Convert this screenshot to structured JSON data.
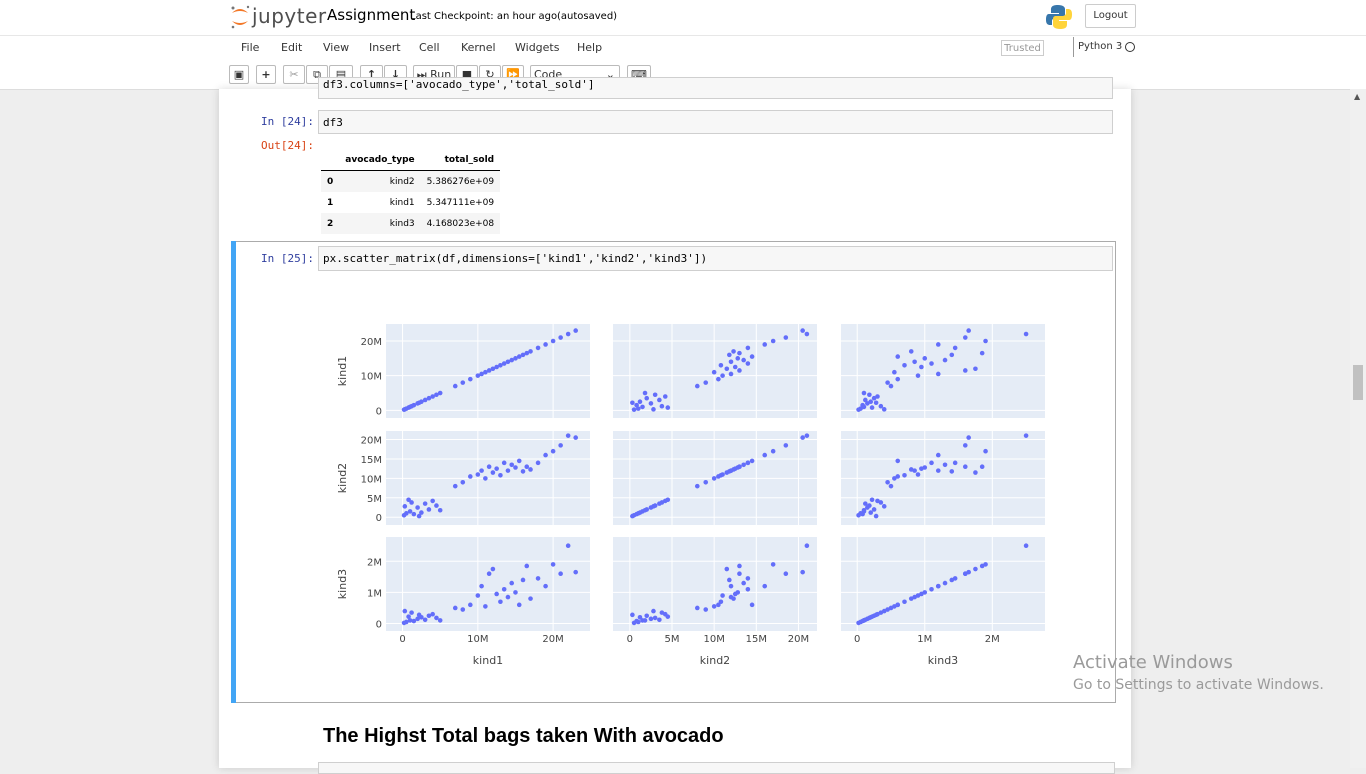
{
  "header": {
    "logo": "jupyter",
    "notebook_name": "Assignment",
    "checkpoint": "Last Checkpoint: an hour ago",
    "autosave": "(autosaved)",
    "logout": "Logout"
  },
  "menu": {
    "items": [
      "File",
      "Edit",
      "View",
      "Insert",
      "Cell",
      "Kernel",
      "Widgets",
      "Help"
    ],
    "trusted": "Trusted",
    "kernel": "Python 3"
  },
  "toolbar": {
    "run": "Run",
    "cell_type": "Code"
  },
  "cells": [
    {
      "code": "df3.columns=['avocado_type','total_sold']"
    },
    {
      "prompt": "In [24]:",
      "code": "df3",
      "out_prompt": "Out[24]:",
      "table": {
        "columns": [
          "avocado_type",
          "total_sold"
        ],
        "rows": [
          [
            "0",
            "kind2",
            "5.386276e+09"
          ],
          [
            "1",
            "kind1",
            "5.347111e+09"
          ],
          [
            "2",
            "kind3",
            "4.168023e+08"
          ]
        ]
      }
    },
    {
      "prompt": "In [25]:",
      "code": "px.scatter_matrix(df,dimensions=['kind1','kind2','kind3'])"
    },
    {
      "heading": "The Highst Total bags taken With avocado"
    }
  ],
  "watermark": {
    "title": "Activate Windows",
    "text": "Go to Settings to activate Windows."
  },
  "chart_data": {
    "type": "scatter_matrix",
    "color": "#636efa",
    "grid": true,
    "dimensions": [
      {
        "name": "kind1",
        "lim": [
          -2200000,
          24900000
        ],
        "ticks": [
          0,
          {
            "value": 10000000,
            "label": "10M"
          },
          {
            "value": 20000000,
            "label": "20M"
          }
        ],
        "values": [
          200000,
          500000,
          1000000,
          1500000,
          2000000,
          2500000,
          3000000,
          3500000,
          4000000,
          4500000,
          800000,
          1200000,
          300000,
          5000000,
          2200000,
          7000000,
          8000000,
          9000000,
          10000000,
          10500000,
          11000000,
          11500000,
          12000000,
          12500000,
          13000000,
          13500000,
          14000000,
          14500000,
          15000000,
          15500000,
          16000000,
          16500000,
          17000000,
          18000000,
          19000000,
          20000000,
          21000000,
          22000000,
          23000000
        ]
      },
      {
        "name": "kind2",
        "lim": [
          -2000000,
          22200000
        ],
        "ticks": [
          0,
          {
            "value": 5000000,
            "label": "5M"
          },
          {
            "value": 10000000,
            "label": "10M"
          },
          {
            "value": 15000000,
            "label": "15M"
          },
          {
            "value": 20000000,
            "label": "20M"
          }
        ],
        "values": [
          500000,
          1000000,
          1500000,
          800000,
          2500000,
          1200000,
          3500000,
          2000000,
          4200000,
          3000000,
          4500000,
          3800000,
          2800000,
          1800000,
          300000,
          8000000,
          9000000,
          10500000,
          11000000,
          12000000,
          10000000,
          13000000,
          11500000,
          12500000,
          10800000,
          14000000,
          12000000,
          13500000,
          12800000,
          14500000,
          11800000,
          13000000,
          12300000,
          14000000,
          16000000,
          17000000,
          18500000,
          21000000,
          20500000
        ]
      },
      {
        "name": "kind3",
        "lim": [
          -240000,
          2780000
        ],
        "ticks": [
          0,
          {
            "value": 1000000,
            "label": "1M"
          },
          {
            "value": 2000000,
            "label": "2M"
          }
        ],
        "values": [
          20000,
          50000,
          100000,
          80000,
          150000,
          200000,
          120000,
          250000,
          300000,
          180000,
          220000,
          350000,
          400000,
          100000,
          280000,
          500000,
          450000,
          600000,
          900000,
          1200000,
          550000,
          1600000,
          1750000,
          950000,
          700000,
          1100000,
          850000,
          1300000,
          1000000,
          600000,
          1400000,
          1850000,
          800000,
          1450000,
          1200000,
          1900000,
          1600000,
          2500000,
          1650000
        ]
      }
    ]
  }
}
